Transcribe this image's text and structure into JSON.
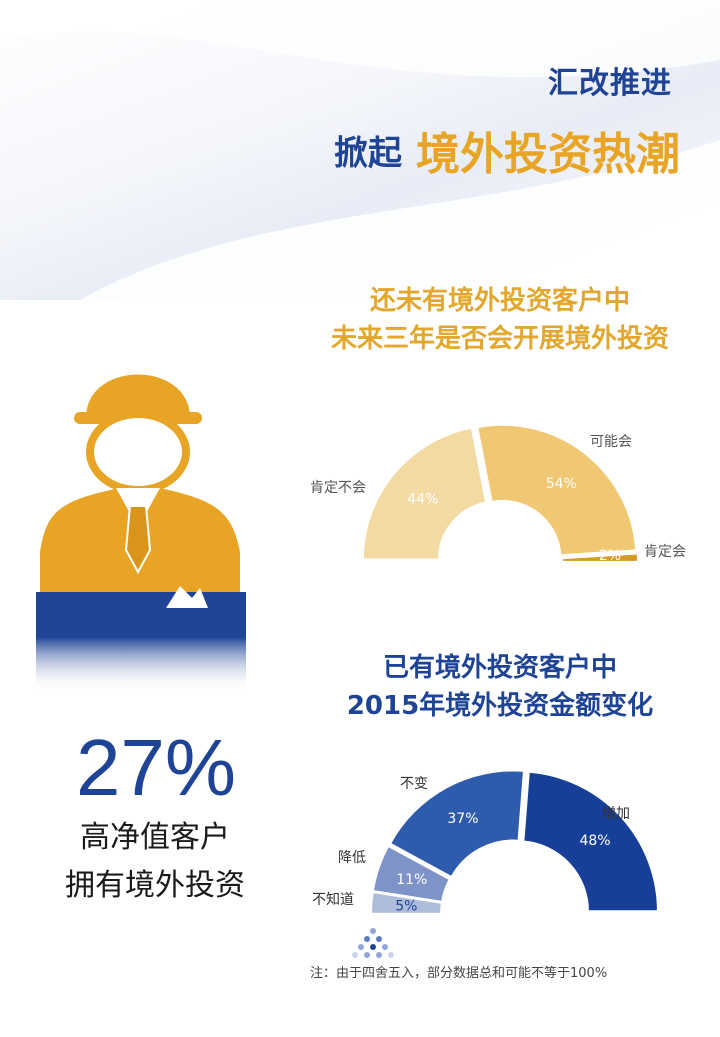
{
  "header": {
    "kicker": "汇改推进",
    "lead": "掀起",
    "highlight": "境外投资热潮"
  },
  "stat": {
    "value": "27%",
    "line1": "高净值客户",
    "line2": "拥有境外投资"
  },
  "footnote": "注：由于四舍五入，部分数据总和可能不等于100%",
  "colors": {
    "gold": "#e8a424",
    "blue": "#1f4496"
  },
  "chart_data": [
    {
      "type": "pie",
      "subtype": "half-donut",
      "title_lines": [
        "还未有境外投资客户中",
        "未来三年是否会开展境外投资"
      ],
      "slices": [
        {
          "label": "肯定不会",
          "value": 44,
          "value_label": "44%",
          "color": "#f3d9a2"
        },
        {
          "label": "可能会",
          "value": 54,
          "value_label": "54%",
          "color": "#f0c873"
        },
        {
          "label": "肯定会",
          "value": 2,
          "value_label": "2%",
          "color": "#d89b22"
        }
      ]
    },
    {
      "type": "pie",
      "subtype": "half-donut",
      "title_lines": [
        "已有境外投资客户中",
        "2015年境外投资金额变化"
      ],
      "slices": [
        {
          "label": "不知道",
          "value": 5,
          "value_label": "5%",
          "color": "#aebcdc"
        },
        {
          "label": "降低",
          "value": 11,
          "value_label": "11%",
          "color": "#7e94c8"
        },
        {
          "label": "不变",
          "value": 37,
          "value_label": "37%",
          "color": "#2f5bad"
        },
        {
          "label": "增加",
          "value": 48,
          "value_label": "48%",
          "color": "#173f97"
        }
      ]
    }
  ]
}
